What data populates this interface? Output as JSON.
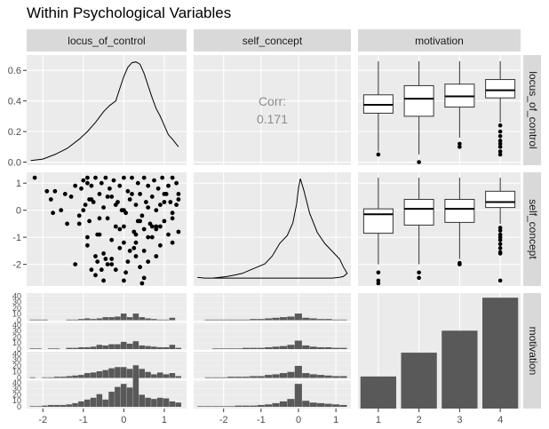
{
  "title": "Within Psychological Variables",
  "chart_data": {
    "type": "pairs",
    "variables": [
      "locus_of_control",
      "self_concept",
      "motivation"
    ],
    "motivation_levels": [
      "1",
      "2",
      "3",
      "4"
    ],
    "axes": {
      "locus_of_control": {
        "range": [
          -2.4,
          1.55
        ],
        "ticks": [
          -2,
          -1,
          0,
          1
        ],
        "tick_labels": [
          "-2",
          "-1",
          "0",
          "1"
        ]
      },
      "self_concept": {
        "range": [
          -2.8,
          1.4
        ],
        "ticks": [
          -2,
          -1,
          0,
          1
        ],
        "tick_labels": [
          "-2",
          "-1",
          "0",
          "1"
        ]
      },
      "density_y": {
        "range": [
          -0.02,
          0.7
        ],
        "ticks": [
          0.0,
          0.2,
          0.4,
          0.6
        ],
        "tick_labels": [
          "0.0",
          "0.2",
          "0.4",
          "0.6"
        ]
      },
      "count_y_labels": [
        "0",
        "10",
        "20",
        "30",
        "40"
      ],
      "count_y_ticks": [
        0,
        10,
        20,
        30,
        40
      ]
    },
    "density_locus_of_control": {
      "x": [
        -2.3,
        -2.0,
        -1.7,
        -1.4,
        -1.1,
        -0.9,
        -0.7,
        -0.5,
        -0.35,
        -0.2,
        -0.1,
        0.0,
        0.1,
        0.2,
        0.3,
        0.4,
        0.5,
        0.6,
        0.7,
        0.8,
        0.9,
        1.0,
        1.1,
        1.2,
        1.35
      ],
      "y": [
        0.01,
        0.02,
        0.05,
        0.09,
        0.15,
        0.2,
        0.26,
        0.33,
        0.37,
        0.4,
        0.48,
        0.56,
        0.62,
        0.65,
        0.655,
        0.64,
        0.58,
        0.5,
        0.42,
        0.35,
        0.3,
        0.24,
        0.18,
        0.15,
        0.1
      ]
    },
    "density_self_concept": {
      "x": [
        -2.7,
        -2.5,
        -2.3,
        -2.1,
        -1.9,
        -1.7,
        -1.5,
        -1.3,
        -1.1,
        -0.9,
        -0.7,
        -0.5,
        -0.3,
        -0.15,
        -0.05,
        0.0,
        0.05,
        0.15,
        0.3,
        0.5,
        0.7,
        0.9,
        1.1,
        1.2,
        1.3,
        1.2,
        1.1,
        0.9,
        0.7,
        0.5,
        0.3,
        0.1,
        -0.1,
        -0.3,
        -0.6,
        -1.0,
        -1.5,
        -2.0,
        -2.5,
        -2.7
      ],
      "y": [
        0.035,
        0.03,
        0.03,
        0.035,
        0.04,
        0.05,
        0.06,
        0.08,
        0.1,
        0.12,
        0.17,
        0.25,
        0.3,
        0.38,
        0.5,
        0.6,
        0.66,
        0.58,
        0.44,
        0.32,
        0.25,
        0.2,
        0.15,
        0.1,
        0.06,
        0.04,
        0.035,
        0.03,
        0.03,
        0.03,
        0.03,
        0.03,
        0.03,
        0.03,
        0.03,
        0.03,
        0.03,
        0.03,
        0.03,
        0.035
      ]
    },
    "correlation": {
      "label": "Corr:",
      "value": "0.171"
    },
    "boxplots_locus_of_control_by_motivation": [
      {
        "level": "1",
        "min": 0.07,
        "q1": 0.32,
        "median": 0.375,
        "q3": 0.44,
        "max": 0.66,
        "outliers": [
          0.05
        ]
      },
      {
        "level": "2",
        "min": 0.05,
        "q1": 0.3,
        "median": 0.415,
        "q3": 0.5,
        "max": 0.66,
        "outliers": [
          0.0
        ]
      },
      {
        "level": "3",
        "min": 0.16,
        "q1": 0.36,
        "median": 0.43,
        "q3": 0.51,
        "max": 0.66,
        "outliers": [
          0.12,
          0.1
        ]
      },
      {
        "level": "4",
        "min": 0.26,
        "q1": 0.42,
        "median": 0.47,
        "q3": 0.54,
        "max": 0.66,
        "outliers": [
          0.24,
          0.2,
          0.17,
          0.14,
          0.12,
          0.1,
          0.07,
          0.05
        ]
      }
    ],
    "boxplots_self_concept_by_motivation": [
      {
        "level": "1",
        "min": -2.0,
        "q1": -0.85,
        "median": -0.15,
        "q3": 0.05,
        "max": 1.2,
        "outliers": [
          -2.3,
          -2.6,
          -2.7
        ]
      },
      {
        "level": "2",
        "min": -2.0,
        "q1": -0.55,
        "median": 0.05,
        "q3": 0.4,
        "max": 1.2,
        "outliers": [
          -2.3,
          -2.5
        ]
      },
      {
        "level": "3",
        "min": -1.8,
        "q1": -0.45,
        "median": 0.05,
        "q3": 0.4,
        "max": 1.2,
        "outliers": [
          -1.95,
          -2.0
        ]
      },
      {
        "level": "4",
        "min": -0.5,
        "q1": 0.1,
        "median": 0.3,
        "q3": 0.7,
        "max": 1.2,
        "outliers": [
          -0.65,
          -0.75,
          -0.9,
          -1.0,
          -1.1,
          -1.25,
          -1.4,
          -1.55,
          -1.6,
          -2.6
        ]
      }
    ],
    "bar_counts_motivation": {
      "categories": [
        "1",
        "2",
        "3",
        "4"
      ],
      "values": [
        35,
        61,
        85,
        121
      ]
    },
    "histograms_locus_of_control_by_motivation": {
      "bin_centers": [
        -2.25,
        -2.1,
        -1.95,
        -1.8,
        -1.65,
        -1.5,
        -1.35,
        -1.2,
        -1.05,
        -0.9,
        -0.75,
        -0.6,
        -0.45,
        -0.3,
        -0.15,
        0.0,
        0.15,
        0.3,
        0.45,
        0.6,
        0.75,
        0.9,
        1.05,
        1.2,
        1.35
      ],
      "counts": [
        [
          1,
          1,
          1,
          0,
          0,
          0,
          1,
          1,
          2,
          3,
          2,
          3,
          5,
          5,
          6,
          11,
          5,
          11,
          5,
          3,
          2,
          1,
          1,
          4,
          0
        ],
        [
          1,
          1,
          0,
          1,
          1,
          0,
          2,
          2,
          3,
          3,
          4,
          7,
          6,
          8,
          8,
          12,
          9,
          13,
          6,
          5,
          4,
          3,
          3,
          7,
          2
        ],
        [
          1,
          0,
          1,
          1,
          2,
          2,
          3,
          4,
          5,
          8,
          9,
          11,
          13,
          16,
          18,
          18,
          15,
          21,
          15,
          10,
          6,
          9,
          6,
          8,
          3
        ],
        [
          1,
          1,
          2,
          3,
          3,
          3,
          4,
          6,
          9,
          12,
          15,
          21,
          12,
          25,
          33,
          38,
          32,
          50,
          20,
          15,
          13,
          15,
          14,
          9,
          7
        ]
      ]
    },
    "histograms_self_concept_by_motivation": {
      "bin_centers": [
        -2.6,
        -2.4,
        -2.2,
        -2.0,
        -1.8,
        -1.6,
        -1.4,
        -1.2,
        -1.0,
        -0.8,
        -0.6,
        -0.4,
        -0.2,
        0.0,
        0.2,
        0.4,
        0.6,
        0.8,
        1.0,
        1.2
      ],
      "counts": [
        [
          0,
          1,
          1,
          1,
          1,
          1,
          1,
          2,
          2,
          3,
          4,
          5,
          6,
          11,
          4,
          3,
          2,
          2,
          1,
          1
        ],
        [
          0,
          0,
          1,
          1,
          1,
          1,
          2,
          2,
          2,
          3,
          4,
          5,
          7,
          14,
          6,
          4,
          3,
          3,
          2,
          2
        ],
        [
          0,
          1,
          1,
          1,
          2,
          2,
          2,
          3,
          3,
          5,
          6,
          8,
          10,
          20,
          8,
          6,
          5,
          4,
          3,
          3
        ],
        [
          1,
          1,
          1,
          1,
          1,
          2,
          2,
          2,
          3,
          4,
          6,
          9,
          13,
          38,
          10,
          7,
          6,
          5,
          4,
          3
        ]
      ]
    },
    "scatter_self_concept_vs_locus_of_control": {
      "x": [
        -2.2,
        -1.9,
        -1.8,
        -1.7,
        -1.55,
        -1.45,
        -1.3,
        -1.2,
        -1.1,
        -1.05,
        -1.0,
        -0.95,
        -0.9,
        -0.85,
        -0.8,
        -0.75,
        -0.7,
        -0.65,
        -0.6,
        -0.55,
        -0.5,
        -0.45,
        -0.4,
        -0.35,
        -0.3,
        -0.25,
        -0.2,
        -0.15,
        -0.1,
        -0.05,
        0.0,
        0.05,
        0.1,
        0.15,
        0.2,
        0.25,
        0.3,
        0.35,
        0.4,
        0.45,
        0.5,
        0.55,
        0.6,
        0.65,
        0.7,
        0.75,
        0.8,
        0.85,
        0.9,
        0.95,
        1.0,
        1.05,
        1.1,
        1.2,
        1.35,
        -0.9,
        -0.7,
        -0.5,
        -0.3,
        -0.1,
        0.1,
        0.3,
        0.5,
        0.7,
        0.9,
        1.1,
        1.35,
        -1.0,
        -0.8,
        -0.6,
        -0.4,
        -0.2,
        0.0,
        0.2,
        0.4,
        0.6,
        0.8,
        1.0,
        1.2,
        -0.9,
        -0.6,
        -0.3,
        0.0,
        0.3,
        0.6,
        0.9,
        1.2,
        -1.2,
        -0.8,
        -0.4,
        0.0,
        0.4,
        0.8,
        1.2,
        -0.7,
        -0.2,
        0.3,
        0.8,
        1.3,
        -1.4,
        -0.5,
        0.5,
        1.35,
        -0.65,
        -0.3,
        0.05,
        0.45,
        -0.55,
        0.15,
        0.6,
        -1.75,
        -0.9,
        -0.1,
        0.35,
        1.0,
        -0.45,
        0.25,
        0.7,
        1.3,
        -1.1,
        0.0,
        -0.85,
        0.5,
        1.15
      ],
      "y": [
        1.2,
        0.7,
        0.4,
        0.7,
        0.0,
        0.6,
        0.5,
        0.9,
        -0.2,
        0.8,
        1.1,
        0.2,
        1.2,
        -0.4,
        0.9,
        0.3,
        1.2,
        -0.9,
        0.6,
        1.0,
        0.1,
        1.2,
        -0.3,
        0.8,
        0.5,
        1.1,
        -0.6,
        0.3,
        0.9,
        0.0,
        1.2,
        -0.1,
        0.7,
        0.4,
        1.2,
        -0.8,
        0.2,
        1.0,
        0.6,
        -0.2,
        1.2,
        0.3,
        0.9,
        -0.5,
        0.5,
        1.1,
        0.0,
        0.8,
        0.2,
        1.2,
        -0.4,
        0.6,
        0.9,
        1.2,
        0.6,
        -1.3,
        -1.7,
        -1.6,
        -1.8,
        -1.4,
        -1.9,
        -1.2,
        -1.5,
        -1.0,
        -1.3,
        -0.9,
        -0.8,
        0.0,
        0.4,
        -0.3,
        0.5,
        0.2,
        -0.6,
        0.6,
        -0.4,
        0.1,
        -0.7,
        0.3,
        -0.1,
        -1.0,
        -0.9,
        -1.1,
        -1.2,
        -0.9,
        -1.0,
        -0.6,
        -0.3,
        -2.0,
        -2.2,
        -2.0,
        -2.6,
        -2.1,
        -1.7,
        -1.2,
        -2.4,
        -2.2,
        -1.7,
        -0.6,
        0.2,
        -0.5,
        -2.6,
        -2.5,
        0.4,
        -1.9,
        -2.0,
        -2.3,
        -2.7,
        -2.2,
        -1.5,
        -1.9,
        -0.1,
        1.0,
        -0.7,
        -0.4,
        0.6,
        -1.8,
        -1.4,
        -0.6,
        1.0,
        -0.5,
        0.0,
        0.4,
        -0.7,
        0.3
      ]
    },
    "panel_strips": {
      "columns": [
        "locus_of_control",
        "self_concept",
        "motivation"
      ],
      "rows": [
        "locus_of_control",
        "self_concept",
        "motivation"
      ]
    }
  },
  "colors": {
    "panel_bg": "#ebebeb",
    "strip_bg": "#d9d9d9",
    "grid_major": "#ffffff",
    "grid_minor": "#f5f5f5",
    "ink": "#000000",
    "bar_fill": "#595959",
    "axis_text": "#4d4d4d",
    "corr_text": "#8c8c8c",
    "box_fill": "#ffffff",
    "box_line": "#333333"
  }
}
